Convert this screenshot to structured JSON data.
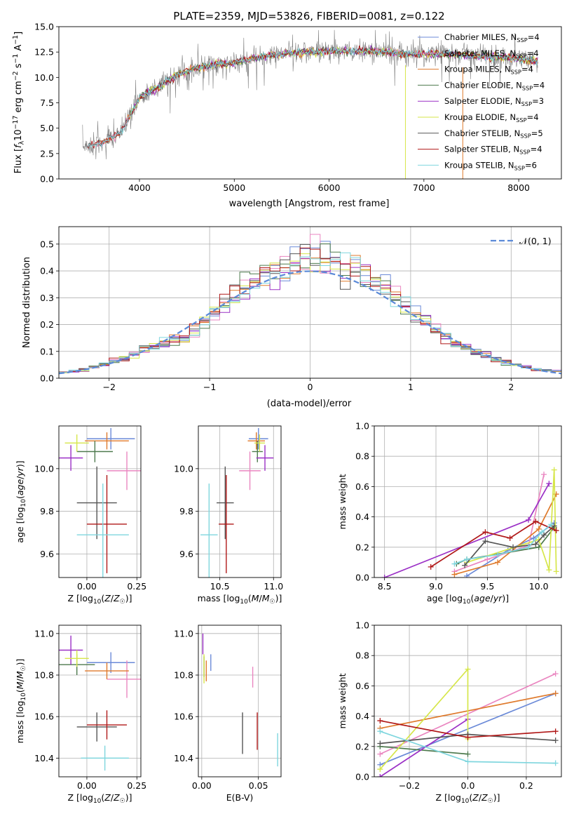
{
  "colors": {
    "Chabrier MILES": "#6b8ad8",
    "Salpeter MILES": "#ea86c0",
    "Kroupa MILES": "#df7a2c",
    "Chabrier ELODIE": "#4e7a4e",
    "Salpeter ELODIE": "#9b30c6",
    "Kroupa ELODIE": "#d6e64a",
    "Chabrier STELIB": "#555555",
    "Salpeter STELIB": "#b01818",
    "Kroupa STELIB": "#7fd6de",
    "normal": "#5b8ad8",
    "grid": "#b0b0b0"
  },
  "chart_data": [
    {
      "id": "spectrum",
      "type": "line",
      "title": "PLATE=2359, MJD=53826, FIBERID=0081, z=0.122",
      "xlabel": "wavelength [Angstrom, rest frame]",
      "ylabel": "Flux [f_λ 10^-17 erg cm^-2 s^-1 A^-1]",
      "xlim": [
        3150,
        8450
      ],
      "ylim": [
        0,
        15
      ],
      "xticks": [
        "4000",
        "5000",
        "6000",
        "7000",
        "8000"
      ],
      "yticks": [
        "0.0",
        "2.5",
        "5.0",
        "7.5",
        "10.0",
        "12.5",
        "15.0"
      ],
      "grid": false,
      "legend_position": "top-right",
      "legend": [
        {
          "name": "Chabrier MILES, N_SSP=4",
          "label_text": "Chabrier MILES, NSSP=4"
        },
        {
          "name": "Salpeter MILES, N_SSP=4",
          "label_text": "Salpeter MILES, NSSP=4"
        },
        {
          "name": "Kroupa MILES, N_SSP=4",
          "label_text": "Kroupa MILES, NSSP=4"
        },
        {
          "name": "Chabrier ELODIE, N_SSP=4",
          "label_text": "Chabrier ELODIE, NSSP=4"
        },
        {
          "name": "Salpeter ELODIE, N_SSP=3",
          "label_text": "Salpeter ELODIE, NSSP=3"
        },
        {
          "name": "Kroupa ELODIE, N_SSP=4",
          "label_text": "Kroupa ELODIE, NSSP=4"
        },
        {
          "name": "Chabrier STELIB, N_SSP=5",
          "label_text": "Chabrier STELIB, NSSP=5"
        },
        {
          "name": "Salpeter STELIB, N_SSP=4",
          "label_text": "Salpeter STELIB, NSSP=4"
        },
        {
          "name": "Kroupa STELIB, N_SSP=6",
          "label_text": "Kroupa STELIB, NSSP=6"
        }
      ],
      "continuum": {
        "x": [
          3400,
          3600,
          3800,
          3900,
          4000,
          4200,
          4400,
          4600,
          4800,
          5000,
          5200,
          5400,
          5600,
          5800,
          6000,
          6200,
          6400,
          6600,
          6800,
          7000,
          7200,
          7400,
          7600,
          7800,
          8000,
          8200
        ],
        "y": [
          3.2,
          3.5,
          4.5,
          6.2,
          8.0,
          9.0,
          10.3,
          10.9,
          11.3,
          11.4,
          11.9,
          12.2,
          12.4,
          12.5,
          12.6,
          12.6,
          12.6,
          12.5,
          12.3,
          12.3,
          12.3,
          12.2,
          12.1,
          12.0,
          11.8,
          11.6
        ]
      }
    },
    {
      "id": "residuals",
      "type": "histogram",
      "xlabel": "(data-model)/error",
      "ylabel": "Normed distribution",
      "xlim": [
        -2.5,
        2.5
      ],
      "ylim": [
        0,
        0.565
      ],
      "xticks": [
        "−2",
        "−1",
        "0",
        "1",
        "2"
      ],
      "yticks": [
        "0.0",
        "0.1",
        "0.2",
        "0.3",
        "0.4",
        "0.5"
      ],
      "grid": true,
      "bin_width": 0.1,
      "reference_curve": {
        "name": "N(0,1)",
        "label_text": "𝒩(0, 1)",
        "mu": 0,
        "sigma": 1,
        "style": "dashed"
      },
      "legend_position": "top-right",
      "observed_profile": {
        "x": [
          -2.45,
          -2.25,
          -2.05,
          -1.85,
          -1.65,
          -1.45,
          -1.25,
          -1.05,
          -0.85,
          -0.65,
          -0.45,
          -0.25,
          -0.05,
          0.05,
          0.25,
          0.45,
          0.65,
          0.85,
          1.05,
          1.25,
          1.45,
          1.65,
          1.85,
          2.05,
          2.25,
          2.45
        ],
        "y": [
          0.022,
          0.031,
          0.05,
          0.075,
          0.11,
          0.13,
          0.15,
          0.21,
          0.28,
          0.34,
          0.38,
          0.4,
          0.44,
          0.46,
          0.44,
          0.41,
          0.36,
          0.3,
          0.24,
          0.18,
          0.13,
          0.1,
          0.07,
          0.05,
          0.032,
          0.026
        ]
      }
    },
    {
      "id": "age_vs_Z",
      "type": "errorbar",
      "xlabel": "Z [log10(Z/Z☉)]",
      "ylabel": "age  [log10(age/yr)]",
      "xlim": [
        -0.14,
        0.27
      ],
      "ylim": [
        9.49,
        10.2
      ],
      "xticks": [
        "0.00",
        "0.25"
      ],
      "yticks": [
        "9.6",
        "9.8",
        "10.0"
      ],
      "grid": true,
      "points": [
        {
          "model": "Chabrier MILES",
          "x": 0.12,
          "xerr": 0.12,
          "y": 10.14,
          "yerr": 0.05
        },
        {
          "model": "Salpeter MILES",
          "x": 0.2,
          "xerr": 0.1,
          "y": 9.99,
          "yerr": 0.09
        },
        {
          "model": "Kroupa MILES",
          "x": 0.1,
          "xerr": 0.11,
          "y": 10.13,
          "yerr": 0.04
        },
        {
          "model": "Chabrier ELODIE",
          "x": 0.04,
          "xerr": 0.09,
          "y": 10.08,
          "yerr": 0.05
        },
        {
          "model": "Salpeter ELODIE",
          "x": -0.08,
          "xerr": 0.06,
          "y": 10.05,
          "yerr": 0.06
        },
        {
          "model": "Kroupa ELODIE",
          "x": -0.05,
          "xerr": 0.06,
          "y": 10.12,
          "yerr": 0.04
        },
        {
          "model": "Chabrier STELIB",
          "x": 0.05,
          "xerr": 0.1,
          "y": 9.84,
          "yerr": 0.17
        },
        {
          "model": "Salpeter STELIB",
          "x": 0.1,
          "xerr": 0.1,
          "y": 9.74,
          "yerr": 0.23
        },
        {
          "model": "Kroupa STELIB",
          "x": 0.08,
          "xerr": 0.13,
          "y": 9.69,
          "yerr": 0.24
        }
      ]
    },
    {
      "id": "age_vs_mass",
      "type": "errorbar",
      "xlabel": "mass [log10(M/M☉)]",
      "ylabel": "",
      "xlim": [
        10.3,
        11.07
      ],
      "ylim": [
        9.49,
        10.2
      ],
      "xticks": [
        "10.5",
        "11.0"
      ],
      "yticks": [
        "9.6",
        "9.8",
        "10.0"
      ],
      "grid": true,
      "points": [
        {
          "model": "Chabrier MILES",
          "x": 10.86,
          "xerr": 0.09,
          "y": 10.14,
          "yerr": 0.05
        },
        {
          "model": "Salpeter MILES",
          "x": 10.78,
          "xerr": 0.1,
          "y": 9.99,
          "yerr": 0.09
        },
        {
          "model": "Kroupa MILES",
          "x": 10.84,
          "xerr": 0.08,
          "y": 10.13,
          "yerr": 0.04
        },
        {
          "model": "Chabrier ELODIE",
          "x": 10.85,
          "xerr": 0.05,
          "y": 10.08,
          "yerr": 0.05
        },
        {
          "model": "Salpeter ELODIE",
          "x": 10.92,
          "xerr": 0.08,
          "y": 10.05,
          "yerr": 0.06
        },
        {
          "model": "Kroupa ELODIE",
          "x": 10.87,
          "xerr": 0.05,
          "y": 10.12,
          "yerr": 0.04
        },
        {
          "model": "Chabrier STELIB",
          "x": 10.55,
          "xerr": 0.08,
          "y": 9.84,
          "yerr": 0.17
        },
        {
          "model": "Salpeter STELIB",
          "x": 10.56,
          "xerr": 0.07,
          "y": 9.74,
          "yerr": 0.23
        },
        {
          "model": "Kroupa STELIB",
          "x": 10.4,
          "xerr": 0.08,
          "y": 9.69,
          "yerr": 0.24
        }
      ]
    },
    {
      "id": "weight_vs_age",
      "type": "line",
      "xlabel": "age  [log10(age/yr)]",
      "ylabel": "mass weight",
      "xlim": [
        8.4,
        10.22
      ],
      "ylim": [
        0,
        1
      ],
      "xticks": [
        "8.5",
        "9.0",
        "9.5",
        "10.0"
      ],
      "yticks": [
        "0.0",
        "0.2",
        "0.4",
        "0.6",
        "0.8",
        "1.0"
      ],
      "grid": true,
      "series": [
        {
          "model": "Chabrier MILES",
          "x": [
            9.3,
            9.7,
            9.95,
            10.15
          ],
          "y": [
            0.01,
            0.18,
            0.26,
            0.36
          ]
        },
        {
          "model": "Salpeter MILES",
          "x": [
            9.18,
            9.5,
            9.9,
            10.05
          ],
          "y": [
            0.04,
            0.12,
            0.21,
            0.68
          ]
        },
        {
          "model": "Kroupa MILES",
          "x": [
            9.18,
            9.6,
            10.0,
            10.17
          ],
          "y": [
            0.02,
            0.1,
            0.32,
            0.55
          ]
        },
        {
          "model": "Chabrier ELODIE",
          "x": [
            9.2,
            9.3,
            10.0,
            10.15
          ],
          "y": [
            0.09,
            0.12,
            0.2,
            0.33
          ]
        },
        {
          "model": "Salpeter ELODIE",
          "x": [
            8.5,
            9.9,
            10.1
          ],
          "y": [
            0.0,
            0.38,
            0.62
          ]
        },
        {
          "model": "Kroupa ELODIE",
          "x": [
            9.3,
            10.0,
            10.1,
            10.15,
            10.17
          ],
          "y": [
            0.1,
            0.25,
            0.05,
            0.71,
            0.04
          ]
        },
        {
          "model": "Chabrier STELIB",
          "x": [
            9.28,
            9.48,
            9.75,
            9.97,
            10.05,
            10.15
          ],
          "y": [
            0.08,
            0.24,
            0.2,
            0.22,
            0.28,
            0.34
          ]
        },
        {
          "model": "Salpeter STELIB",
          "x": [
            8.95,
            9.48,
            9.72,
            9.97,
            10.17
          ],
          "y": [
            0.07,
            0.3,
            0.26,
            0.37,
            0.31
          ]
        },
        {
          "model": "Kroupa STELIB",
          "x": [
            9.18,
            9.3,
            9.6,
            9.9,
            10.03,
            10.12
          ],
          "y": [
            0.09,
            0.12,
            0.15,
            0.2,
            0.3,
            0.35
          ]
        }
      ]
    },
    {
      "id": "mass_vs_Z",
      "type": "errorbar",
      "xlabel": "Z [log10(Z/Z☉)]",
      "ylabel": "mass [log10(M/M☉)]",
      "xlim": [
        -0.14,
        0.27
      ],
      "ylim": [
        10.31,
        11.04
      ],
      "xticks": [
        "0.00",
        "0.25"
      ],
      "yticks": [
        "10.4",
        "10.6",
        "10.8",
        "11.0"
      ],
      "grid": true,
      "points": [
        {
          "model": "Chabrier MILES",
          "x": 0.12,
          "xerr": 0.12,
          "y": 10.86,
          "yerr": 0.05
        },
        {
          "model": "Salpeter MILES",
          "x": 0.2,
          "xerr": 0.1,
          "y": 10.78,
          "yerr": 0.09
        },
        {
          "model": "Kroupa MILES",
          "x": 0.1,
          "xerr": 0.11,
          "y": 10.82,
          "yerr": 0.04
        },
        {
          "model": "Chabrier ELODIE",
          "x": -0.05,
          "xerr": 0.09,
          "y": 10.85,
          "yerr": 0.05
        },
        {
          "model": "Salpeter ELODIE",
          "x": -0.08,
          "xerr": 0.06,
          "y": 10.92,
          "yerr": 0.07
        },
        {
          "model": "Kroupa ELODIE",
          "x": -0.05,
          "xerr": 0.06,
          "y": 10.88,
          "yerr": 0.04
        },
        {
          "model": "Chabrier STELIB",
          "x": 0.05,
          "xerr": 0.1,
          "y": 10.55,
          "yerr": 0.07
        },
        {
          "model": "Salpeter STELIB",
          "x": 0.1,
          "xerr": 0.1,
          "y": 10.56,
          "yerr": 0.07
        },
        {
          "model": "Kroupa STELIB",
          "x": 0.09,
          "xerr": 0.12,
          "y": 10.4,
          "yerr": 0.06
        }
      ]
    },
    {
      "id": "mass_vs_ebv",
      "type": "errorbar",
      "xlabel": "E(B-V)",
      "ylabel": "",
      "xlim": [
        -0.003,
        0.07
      ],
      "ylim": [
        10.31,
        11.04
      ],
      "xticks": [
        "0.00",
        "0.05"
      ],
      "yticks": [
        "10.4",
        "10.6",
        "10.8",
        "11.0"
      ],
      "grid": true,
      "points": [
        {
          "model": "Chabrier MILES",
          "x": 0.008,
          "xerr": 0,
          "y": 10.86,
          "yerr": 0.04
        },
        {
          "model": "Salpeter MILES",
          "x": 0.045,
          "xerr": 0,
          "y": 10.79,
          "yerr": 0.05
        },
        {
          "model": "Kroupa MILES",
          "x": 0.004,
          "xerr": 0,
          "y": 10.82,
          "yerr": 0.05
        },
        {
          "model": "Chabrier ELODIE",
          "x": 0.002,
          "xerr": 0,
          "y": 10.84,
          "yerr": 0.05
        },
        {
          "model": "Salpeter ELODIE",
          "x": 0.001,
          "xerr": 0,
          "y": 10.95,
          "yerr": 0.05
        },
        {
          "model": "Kroupa ELODIE",
          "x": 0.002,
          "xerr": 0,
          "y": 10.83,
          "yerr": 0.07
        },
        {
          "model": "Chabrier STELIB",
          "x": 0.036,
          "xerr": 0,
          "y": 10.52,
          "yerr": 0.1
        },
        {
          "model": "Salpeter STELIB",
          "x": 0.049,
          "xerr": 0,
          "y": 10.53,
          "yerr": 0.09
        },
        {
          "model": "Kroupa STELIB",
          "x": 0.067,
          "xerr": 0,
          "y": 10.44,
          "yerr": 0.08
        }
      ]
    },
    {
      "id": "weight_vs_Z",
      "type": "line",
      "xlabel": "Z [log10(Z/Z☉)]",
      "ylabel": "mass weight",
      "xlim": [
        -0.32,
        0.32
      ],
      "ylim": [
        0,
        1
      ],
      "xticks": [
        "−0.2",
        "0.0",
        "0.2"
      ],
      "yticks": [
        "0.0",
        "0.2",
        "0.4",
        "0.6",
        "0.8",
        "1.0"
      ],
      "grid": true,
      "series": [
        {
          "model": "Chabrier MILES",
          "x": [
            -0.3,
            0.3
          ],
          "y": [
            0.08,
            0.55
          ]
        },
        {
          "model": "Salpeter MILES",
          "x": [
            -0.3,
            0.3
          ],
          "y": [
            0.15,
            0.68
          ]
        },
        {
          "model": "Kroupa MILES",
          "x": [
            -0.3,
            0.3
          ],
          "y": [
            0.32,
            0.55
          ]
        },
        {
          "model": "Chabrier ELODIE",
          "x": [
            -0.3,
            0.0
          ],
          "y": [
            0.2,
            0.15
          ]
        },
        {
          "model": "Salpeter ELODIE",
          "x": [
            -0.3,
            0.0
          ],
          "y": [
            0.0,
            0.38
          ]
        },
        {
          "model": "Kroupa ELODIE",
          "x": [
            -0.3,
            0.0,
            0.0
          ],
          "y": [
            0.05,
            0.71,
            0.25
          ]
        },
        {
          "model": "Chabrier STELIB",
          "x": [
            -0.3,
            0.0,
            0.3
          ],
          "y": [
            0.22,
            0.28,
            0.24
          ]
        },
        {
          "model": "Salpeter STELIB",
          "x": [
            -0.3,
            0.0,
            0.3
          ],
          "y": [
            0.37,
            0.26,
            0.3
          ]
        },
        {
          "model": "Kroupa STELIB",
          "x": [
            -0.3,
            0.0,
            0.3
          ],
          "y": [
            0.3,
            0.1,
            0.09
          ]
        }
      ]
    }
  ]
}
